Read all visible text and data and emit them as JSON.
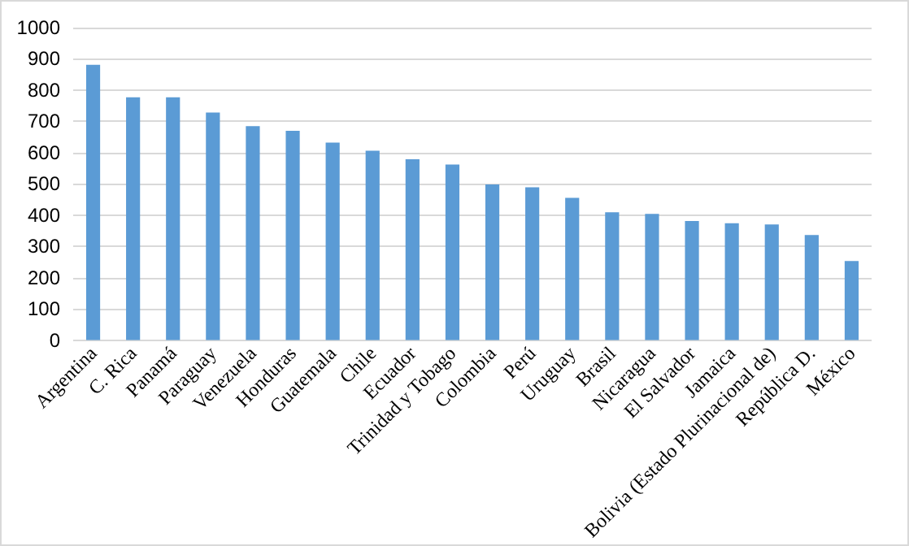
{
  "chart_data": {
    "type": "bar",
    "categories": [
      "Argentina",
      "C. Rica",
      "Panamá",
      "Paraguay",
      "Venezuela",
      "Honduras",
      "Guatemala",
      "Chile",
      "Ecuador",
      "Trinidad y Tobago",
      "Colombia",
      "Perú",
      "Uruguay",
      "Brasil",
      "Nicaragua",
      "El Salvador",
      "Jamaica",
      "Bolivia (Estado Plurinacional de)",
      "República D.",
      "México"
    ],
    "values": [
      881,
      777,
      777,
      728,
      685,
      670,
      632,
      606,
      579,
      562,
      498,
      489,
      455,
      409,
      404,
      381,
      374,
      370,
      336,
      253
    ],
    "color": "#5b9bd5",
    "ylim": [
      0,
      1000
    ],
    "yticks": [
      0,
      100,
      200,
      300,
      400,
      500,
      600,
      700,
      800,
      900,
      1000
    ],
    "grid": "y"
  }
}
